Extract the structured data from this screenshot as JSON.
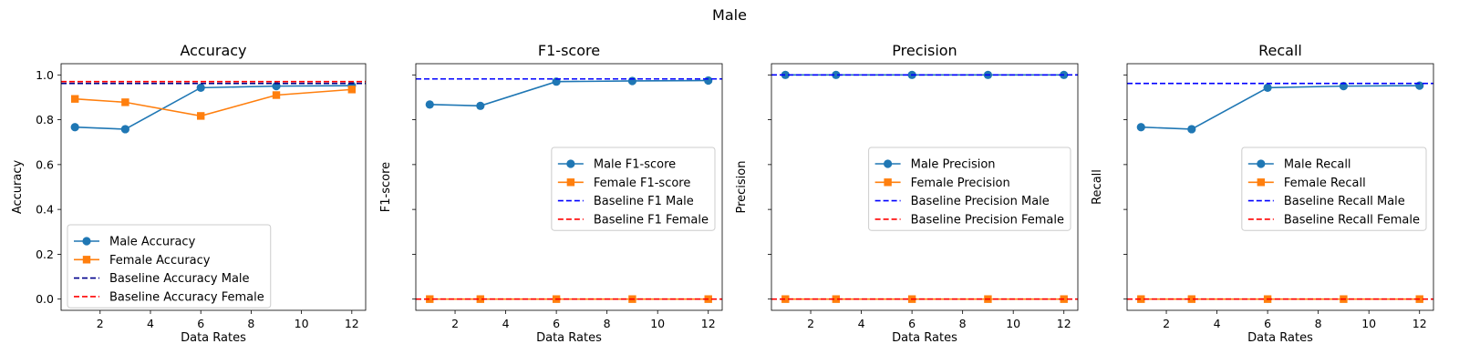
{
  "suptitle": "Male",
  "colors": {
    "male": "#1f77b4",
    "female": "#ff7f0e",
    "baseline_male": "#0000ff",
    "baseline_female": "#ff0000",
    "baseline_male_accuracy": "#00008b"
  },
  "chart_data": [
    {
      "type": "line",
      "title": "Accuracy",
      "xlabel": "Data Rates",
      "ylabel": "Accuracy",
      "x": [
        1,
        3,
        6,
        9,
        12
      ],
      "xticks": [
        "2",
        "4",
        "6",
        "8",
        "10",
        "12"
      ],
      "yticks": [
        "0.0",
        "0.2",
        "0.4",
        "0.6",
        "0.8",
        "1.0"
      ],
      "show_ytick_labels": true,
      "ylim": [
        -0.05,
        1.05
      ],
      "xlim": [
        0.45,
        12.55
      ],
      "legend_position": "lower-left",
      "series": [
        {
          "name": "Male Accuracy",
          "values": [
            0.767,
            0.758,
            0.943,
            0.95,
            0.952
          ],
          "marker": "circle",
          "color": "#1f77b4"
        },
        {
          "name": "Female Accuracy",
          "values": [
            0.893,
            0.878,
            0.817,
            0.91,
            0.935
          ],
          "marker": "square",
          "color": "#ff7f0e"
        }
      ],
      "baselines": [
        {
          "name": "Baseline Accuracy Male",
          "value": 0.962,
          "color": "#00008b"
        },
        {
          "name": "Baseline Accuracy Female",
          "value": 0.97,
          "color": "#ff0000"
        }
      ]
    },
    {
      "type": "line",
      "title": "F1-score",
      "xlabel": "Data Rates",
      "ylabel": "F1-score",
      "x": [
        1,
        3,
        6,
        9,
        12
      ],
      "xticks": [
        "2",
        "4",
        "6",
        "8",
        "10",
        "12"
      ],
      "yticks": [
        "0.0",
        "0.2",
        "0.4",
        "0.6",
        "0.8",
        "1.0"
      ],
      "show_ytick_labels": false,
      "ylim": [
        -0.05,
        1.05
      ],
      "xlim": [
        0.45,
        12.55
      ],
      "legend_position": "center-right",
      "series": [
        {
          "name": "Male F1-score",
          "values": [
            0.868,
            0.862,
            0.97,
            0.973,
            0.975
          ],
          "marker": "circle",
          "color": "#1f77b4"
        },
        {
          "name": "Female F1-score",
          "values": [
            0.0,
            0.0,
            0.0,
            0.0,
            0.0
          ],
          "marker": "square",
          "color": "#ff7f0e"
        }
      ],
      "baselines": [
        {
          "name": "Baseline F1 Male",
          "value": 0.982,
          "color": "#0000ff"
        },
        {
          "name": "Baseline F1 Female",
          "value": 0.0,
          "color": "#ff0000"
        }
      ]
    },
    {
      "type": "line",
      "title": "Precision",
      "xlabel": "Data Rates",
      "ylabel": "Precision",
      "x": [
        1,
        3,
        6,
        9,
        12
      ],
      "xticks": [
        "2",
        "4",
        "6",
        "8",
        "10",
        "12"
      ],
      "yticks": [
        "0.0",
        "0.2",
        "0.4",
        "0.6",
        "0.8",
        "1.0"
      ],
      "show_ytick_labels": false,
      "ylim": [
        -0.05,
        1.05
      ],
      "xlim": [
        0.45,
        12.55
      ],
      "legend_position": "center-right",
      "series": [
        {
          "name": "Male Precision",
          "values": [
            1.0,
            1.0,
            1.0,
            1.0,
            1.0
          ],
          "marker": "circle",
          "color": "#1f77b4"
        },
        {
          "name": "Female Precision",
          "values": [
            0.0,
            0.0,
            0.0,
            0.0,
            0.0
          ],
          "marker": "square",
          "color": "#ff7f0e"
        }
      ],
      "baselines": [
        {
          "name": "Baseline Precision Male",
          "value": 1.0,
          "color": "#0000ff"
        },
        {
          "name": "Baseline Precision Female",
          "value": 0.0,
          "color": "#ff0000"
        }
      ]
    },
    {
      "type": "line",
      "title": "Recall",
      "xlabel": "Data Rates",
      "ylabel": "Recall",
      "x": [
        1,
        3,
        6,
        9,
        12
      ],
      "xticks": [
        "2",
        "4",
        "6",
        "8",
        "10",
        "12"
      ],
      "yticks": [
        "0.0",
        "0.2",
        "0.4",
        "0.6",
        "0.8",
        "1.0"
      ],
      "show_ytick_labels": false,
      "ylim": [
        -0.05,
        1.05
      ],
      "xlim": [
        0.45,
        12.55
      ],
      "legend_position": "center-right",
      "series": [
        {
          "name": "Male Recall",
          "values": [
            0.767,
            0.758,
            0.943,
            0.95,
            0.952
          ],
          "marker": "circle",
          "color": "#1f77b4"
        },
        {
          "name": "Female Recall",
          "values": [
            0.0,
            0.0,
            0.0,
            0.0,
            0.0
          ],
          "marker": "square",
          "color": "#ff7f0e"
        }
      ],
      "baselines": [
        {
          "name": "Baseline Recall Male",
          "value": 0.962,
          "color": "#0000ff"
        },
        {
          "name": "Baseline Recall Female",
          "value": 0.0,
          "color": "#ff0000"
        }
      ]
    }
  ]
}
